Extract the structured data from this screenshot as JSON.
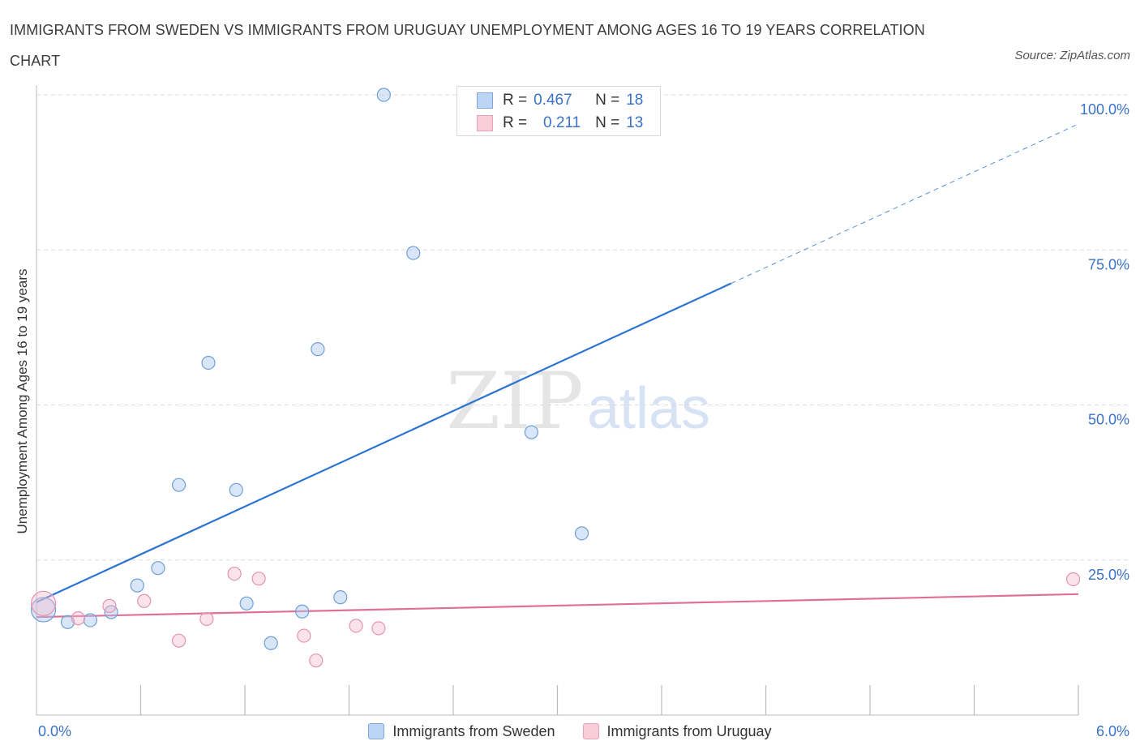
{
  "header": {
    "title": "IMMIGRANTS FROM SWEDEN VS IMMIGRANTS FROM URUGUAY UNEMPLOYMENT AMONG AGES 16 TO 19 YEARS CORRELATION CHART",
    "source": "Source: ZipAtlas.com"
  },
  "watermark": {
    "zip": "ZIP",
    "atlas": "atlas"
  },
  "colors": {
    "sweden": "#a8c8ee",
    "sweden_line": "#2c74d0",
    "uruguay": "#f5b8cc",
    "uruguay_line": "#e0709a",
    "tick_label": "#3a72c8"
  },
  "stats_legend": {
    "rows": [
      {
        "r_label": "R =",
        "r_value": "0.467",
        "n_label": "N =",
        "n_value": "18"
      },
      {
        "r_label": "R =",
        "r_value": "0.211",
        "n_label": "N =",
        "n_value": "13"
      }
    ]
  },
  "chart_data": {
    "type": "scatter",
    "title": "IMMIGRANTS FROM SWEDEN VS IMMIGRANTS FROM URUGUAY UNEMPLOYMENT AMONG AGES 16 TO 19 YEARS CORRELATION CHART",
    "xlabel": "",
    "ylabel": "Unemployment Among Ages 16 to 19 years",
    "xlim": [
      0,
      6
    ],
    "ylim": [
      0,
      100
    ],
    "x_tick_labels": [
      "0.0%",
      "6.0%"
    ],
    "y_ticks": [
      25,
      50,
      75,
      100
    ],
    "y_tick_labels": [
      "25.0%",
      "50.0%",
      "75.0%",
      "100.0%"
    ],
    "grid": true,
    "legend": "bottom-center",
    "series": [
      {
        "name": "Immigrants from Sweden",
        "color": "#a8c8ee",
        "r": 0.467,
        "n": 18,
        "points": [
          {
            "x": 0.04,
            "y": 17.0,
            "big": true
          },
          {
            "x": 0.18,
            "y": 15.0
          },
          {
            "x": 0.31,
            "y": 15.3
          },
          {
            "x": 0.43,
            "y": 16.6
          },
          {
            "x": 0.58,
            "y": 20.9
          },
          {
            "x": 0.7,
            "y": 23.7
          },
          {
            "x": 0.82,
            "y": 37.1
          },
          {
            "x": 0.99,
            "y": 56.8
          },
          {
            "x": 1.15,
            "y": 36.3
          },
          {
            "x": 1.21,
            "y": 18.0
          },
          {
            "x": 1.35,
            "y": 11.6
          },
          {
            "x": 1.53,
            "y": 16.7
          },
          {
            "x": 1.62,
            "y": 59.0
          },
          {
            "x": 1.75,
            "y": 19.0
          },
          {
            "x": 2.0,
            "y": 100.0
          },
          {
            "x": 2.17,
            "y": 74.5
          },
          {
            "x": 2.85,
            "y": 45.6
          },
          {
            "x": 3.14,
            "y": 29.3
          }
        ],
        "trend": {
          "x0": 0.0,
          "y0": 18.2,
          "x1": 4.0,
          "y1": 69.6,
          "x_end": 6.0,
          "y_end": 95.3
        }
      },
      {
        "name": "Immigrants from Uruguay",
        "color": "#f5b8cc",
        "r": 0.211,
        "n": 13,
        "points": [
          {
            "x": 0.04,
            "y": 18.0,
            "big": true
          },
          {
            "x": 0.24,
            "y": 15.6
          },
          {
            "x": 0.42,
            "y": 17.6
          },
          {
            "x": 0.62,
            "y": 18.4
          },
          {
            "x": 0.82,
            "y": 12.0
          },
          {
            "x": 0.98,
            "y": 15.5
          },
          {
            "x": 1.14,
            "y": 22.8
          },
          {
            "x": 1.28,
            "y": 22.0
          },
          {
            "x": 1.54,
            "y": 12.8
          },
          {
            "x": 1.61,
            "y": 8.8
          },
          {
            "x": 1.84,
            "y": 14.4
          },
          {
            "x": 1.97,
            "y": 14.0
          },
          {
            "x": 5.97,
            "y": 21.9
          }
        ],
        "trend": {
          "x0": 0.0,
          "y0": 15.8,
          "x1": 6.0,
          "y1": 19.5
        }
      }
    ]
  }
}
